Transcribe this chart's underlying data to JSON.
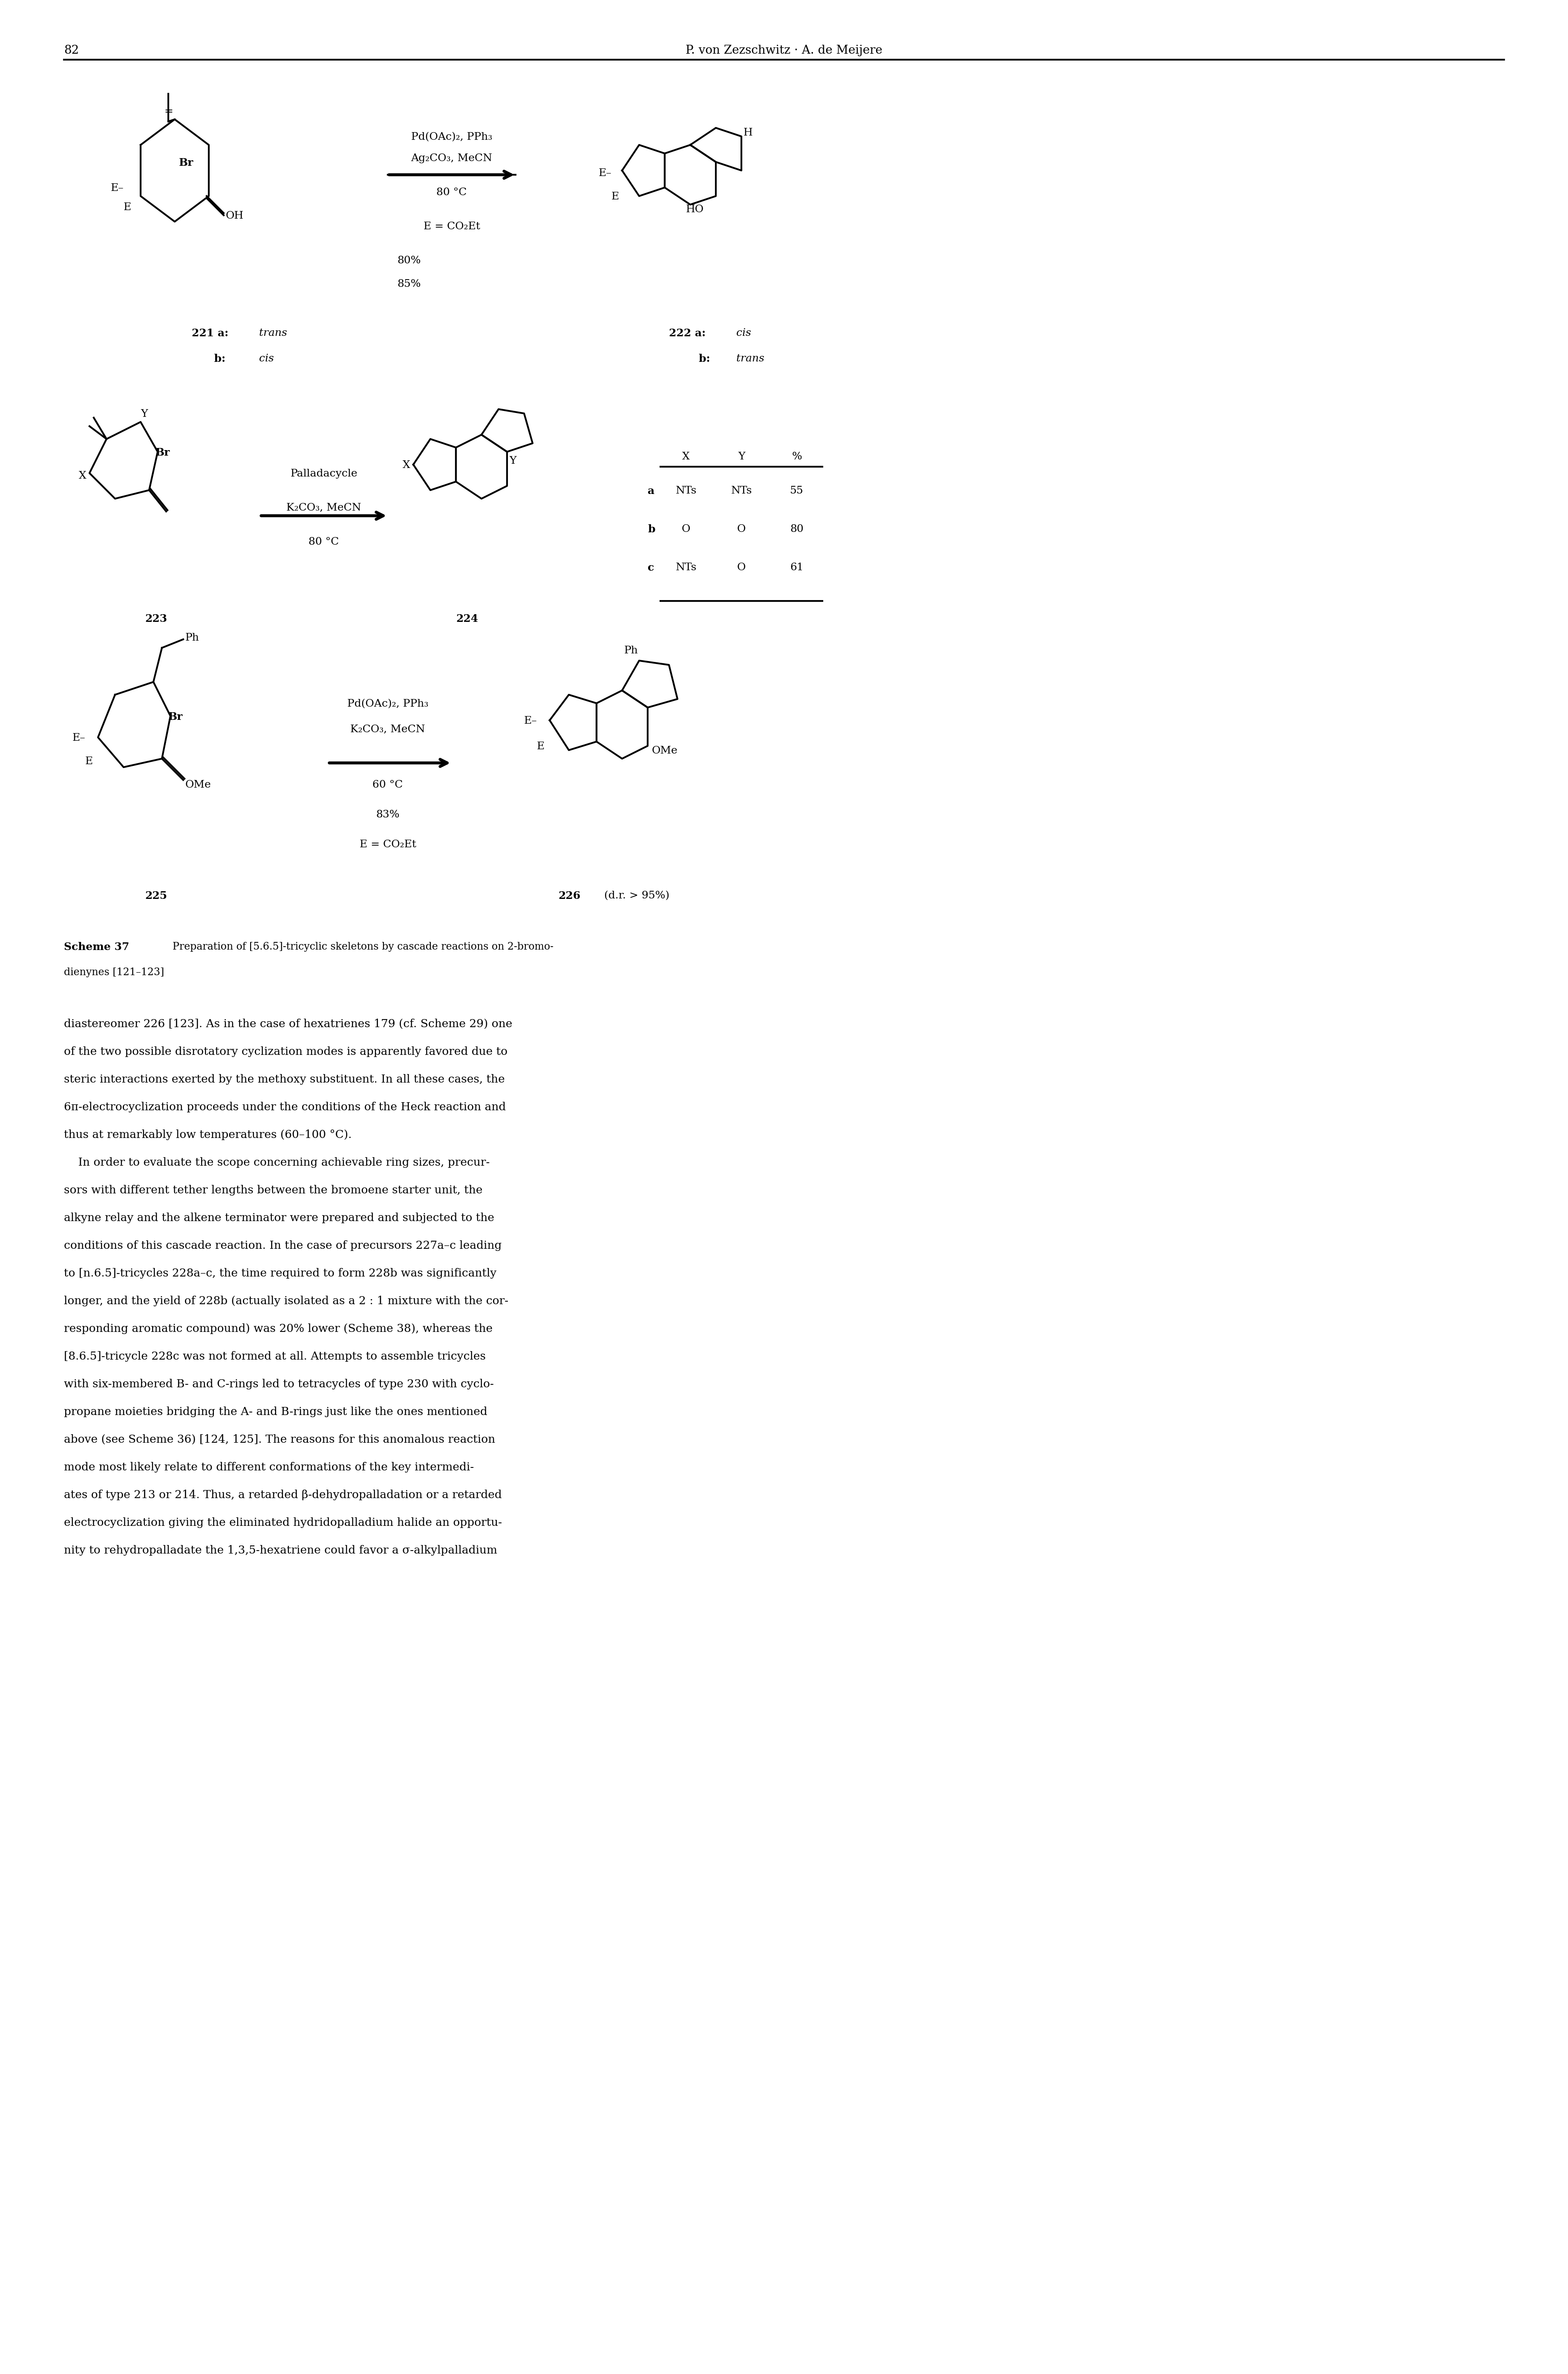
{
  "page_number": "82",
  "header_right": "P. von Zezschwitz · A. de Meijere",
  "scheme_label": "Scheme 37",
  "scheme_caption": "Preparation of [5.6.5]-tricyclic skeletons by cascade reactions on 2-bromo-\ndienynes [121–123]",
  "body_text": [
    "diastereomer ⁠⁠226⁠ [123]. As in the case of hexatrienes ⁠179⁠ (cf. Scheme 29) one",
    "of the two possible disrotatory cyclization modes is apparently favored due to",
    "steric interactions exerted by the methoxy substituent. In all these cases, the",
    "6π-electrocyclization proceeds under the conditions of the Heck reaction and",
    "thus at remarkably low temperatures (60–100 °C).",
    "    In order to evaluate the scope concerning achievable ring sizes, precur-",
    "sors with different tether lengths between the bromoene starter unit, the",
    "alkyne relay and the alkene terminator were prepared and subjected to the",
    "conditions of this cascade reaction. In the case of precursors ⁠227a–c⁠ leading",
    "to [⁠n⁠.6.5]-tricycles ⁠228a–c⁠, the time required to form ⁠228b⁠ was significantly",
    "longer, and the yield of ⁠228b⁠ (actually isolated as a 2 : 1 mixture with the cor-",
    "responding aromatic compound) was 20% lower (Scheme 38), whereas the",
    "[8.6.5]-tricycle ⁠228c⁠ was not formed at all. Attempts to assemble tricycles",
    "with six-membered B- and C-rings led to tetracycles of type ⁠230⁠ with cyclo-",
    "propane moieties bridging the A- and B-rings just like the ones mentioned",
    "above (see Scheme 36) [124, 125]. The reasons for this anomalous reaction",
    "mode most likely relate to different conformations of the key intermedi-",
    "ates of type ⁠213⁠ or ⁠214⁠. Thus, a retarded β-dehydropalladation or a retarded",
    "electrocyclization giving the eliminated hydridopalladium halide an opportu-",
    "nity to rehydropalladate the 1,3,5-hexatriene could favor a σ-alkylpalladium"
  ],
  "background_color": "#ffffff",
  "text_color": "#000000",
  "font_size_body": 9.5,
  "font_size_header": 10,
  "font_size_scheme_label": 9.5,
  "line_color": "#000000"
}
